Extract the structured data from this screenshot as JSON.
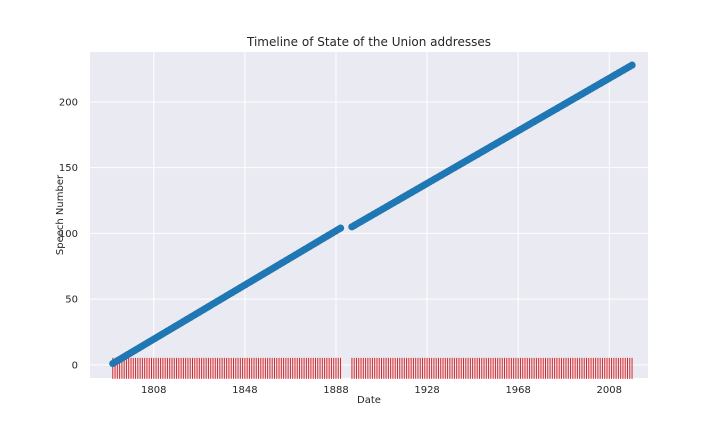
{
  "chart_data": {
    "type": "scatter",
    "title": "Timeline of State of the Union addresses",
    "xlabel": "Date",
    "ylabel": "Speech Number",
    "x_ticks": [
      "1808",
      "1848",
      "1888",
      "1928",
      "1968",
      "2008"
    ],
    "y_ticks": [
      "0",
      "50",
      "100",
      "150",
      "200"
    ],
    "xlim": [
      1780,
      2025
    ],
    "ylim": [
      -10,
      238
    ],
    "grid": true,
    "series": [
      {
        "kind": "line-markers",
        "color": "#1f77b4",
        "segments": [
          {
            "x_start": 1790,
            "x_end": 1890,
            "y_start": 1,
            "y_end": 104
          },
          {
            "x_start": 1895,
            "x_end": 2018,
            "y_start": 105,
            "y_end": 228
          }
        ]
      },
      {
        "kind": "rug",
        "color": "#d62728",
        "y": 0,
        "ranges": [
          [
            1790,
            1890
          ],
          [
            1895,
            2018
          ]
        ]
      }
    ]
  }
}
